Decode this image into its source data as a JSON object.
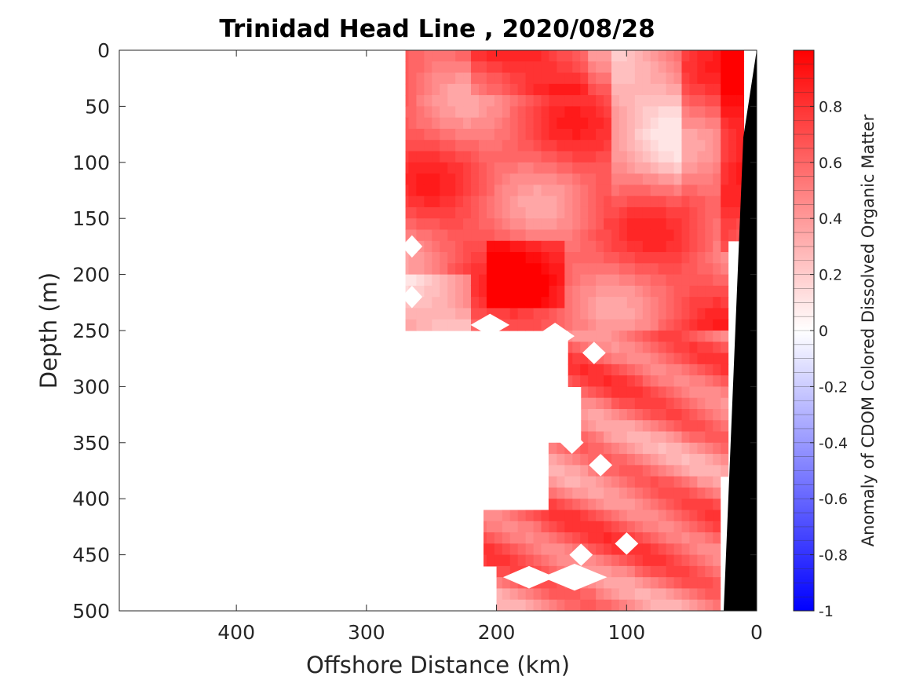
{
  "chart_data": {
    "type": "heatmap",
    "title": "Trinidad Head Line , 2020/08/28",
    "xlabel": "Offshore Distance (km)",
    "ylabel": "Depth (m)",
    "colorbar_label": "Anomaly of CDOM Colored Dissolved Organic Matter",
    "xlim": [
      490,
      0
    ],
    "ylim": [
      0,
      500
    ],
    "x_reversed": true,
    "y_reversed": true,
    "xticks": [
      400,
      300,
      200,
      100,
      0
    ],
    "xtick_labels": [
      "400",
      "300",
      "200",
      "100",
      "0"
    ],
    "yticks": [
      0,
      50,
      100,
      150,
      200,
      250,
      300,
      350,
      400,
      450,
      500
    ],
    "ytick_labels": [
      "0",
      "50",
      "100",
      "150",
      "200",
      "250",
      "300",
      "350",
      "400",
      "450",
      "500"
    ],
    "clim": [
      -1,
      1
    ],
    "colorbar_ticks": [
      0.8,
      0.6,
      0.4,
      0.2,
      0,
      -0.2,
      -0.4,
      -0.6,
      -0.8,
      -1
    ],
    "colorbar_tick_labels": [
      "0.8",
      "0.6",
      "0.4",
      "0.2",
      "0",
      "-0.2",
      "-0.4",
      "-0.6",
      "-0.8",
      "-1"
    ],
    "colorbar_levels": 40,
    "colormap": {
      "low": "#0000ff",
      "mid": "#ffffff",
      "high": "#ff0000"
    },
    "bathymetry_color": "#000000",
    "grid": false,
    "data_x_range_km": [
      0,
      270
    ],
    "data_depth_range_m": [
      0,
      500
    ],
    "anomaly_range_observed": [
      0.1,
      1.0
    ]
  }
}
